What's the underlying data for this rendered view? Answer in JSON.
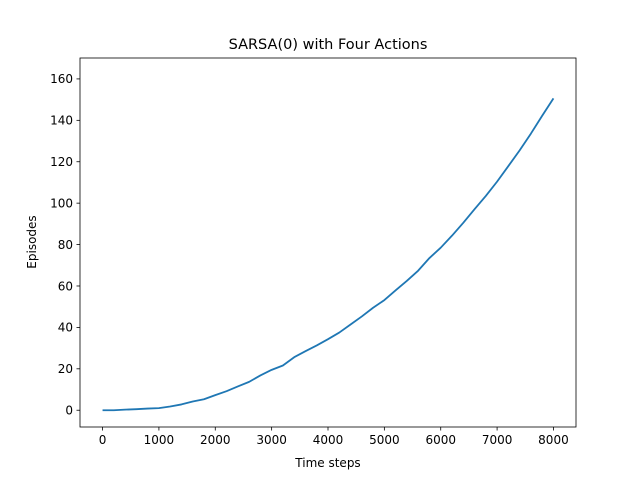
{
  "chart_data": {
    "type": "line",
    "title": "SARSA(0) with Four Actions",
    "xlabel": "Time steps",
    "ylabel": "Episodes",
    "xlim": [
      -400,
      8400
    ],
    "ylim": [
      -8.1,
      170.1
    ],
    "xticks": [
      0,
      1000,
      2000,
      3000,
      4000,
      5000,
      6000,
      7000,
      8000
    ],
    "yticks": [
      0,
      20,
      40,
      60,
      80,
      100,
      120,
      140,
      160
    ],
    "grid": false,
    "colors": {
      "line": "#1f77b4"
    },
    "series": [
      {
        "x": [
          0,
          200,
          400,
          600,
          800,
          1000,
          1200,
          1400,
          1600,
          1800,
          2000,
          2200,
          2400,
          2600,
          2800,
          3000,
          3200,
          3400,
          3600,
          3800,
          4000,
          4200,
          4400,
          4600,
          4800,
          5000,
          5200,
          5400,
          5600,
          5800,
          6000,
          6200,
          6400,
          6600,
          6800,
          7000,
          7200,
          7400,
          7600,
          7800,
          8000
        ],
        "values": [
          0,
          0,
          0.3,
          0.5,
          0.8,
          1,
          1.8,
          2.8,
          4.2,
          5.3,
          7.3,
          9.2,
          11.5,
          13.7,
          16.8,
          19.5,
          21.6,
          25.6,
          28.5,
          31.3,
          34.3,
          37.5,
          41.4,
          45.3,
          49.5,
          53.2,
          57.9,
          62.5,
          67.4,
          73.5,
          78.5,
          84.3,
          90.5,
          97.1,
          103.5,
          110.4,
          117.9,
          125.5,
          133.6,
          142.2,
          150.6
        ]
      }
    ]
  }
}
